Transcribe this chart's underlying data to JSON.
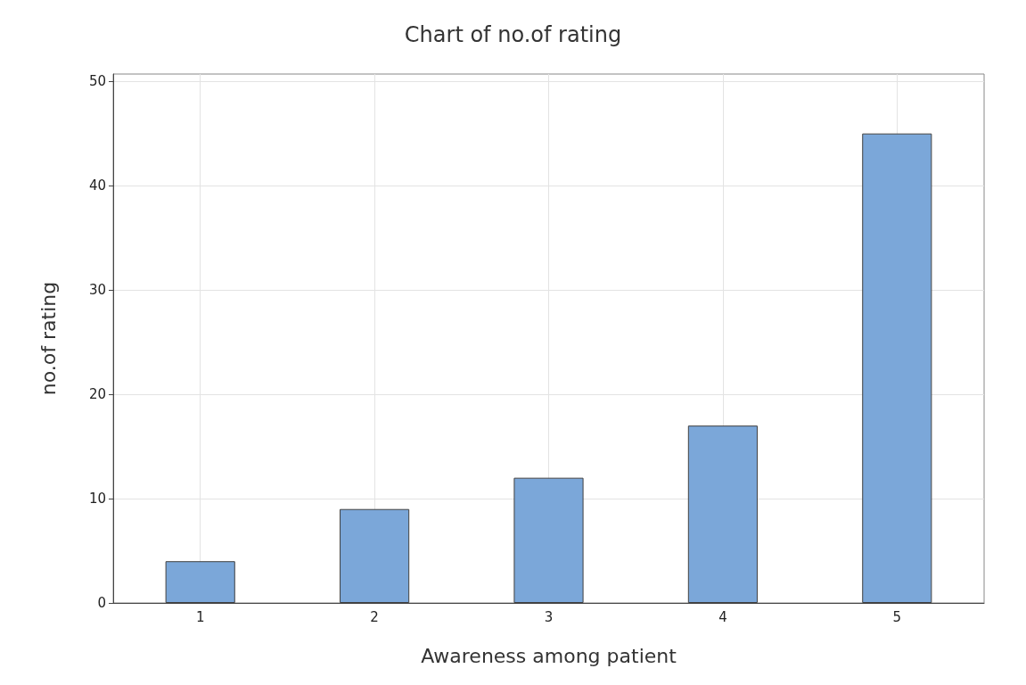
{
  "chart_data": {
    "type": "bar",
    "title": "Chart of no.of rating",
    "xlabel": "Awareness among patient",
    "ylabel": "no.of rating",
    "categories": [
      "1",
      "2",
      "3",
      "4",
      "5"
    ],
    "values": [
      4,
      9,
      12,
      17,
      45
    ],
    "color": "#7ba7d9",
    "ylim": [
      0,
      50.7
    ],
    "yticks": [
      0,
      10,
      20,
      30,
      40,
      50
    ],
    "grid": true
  }
}
